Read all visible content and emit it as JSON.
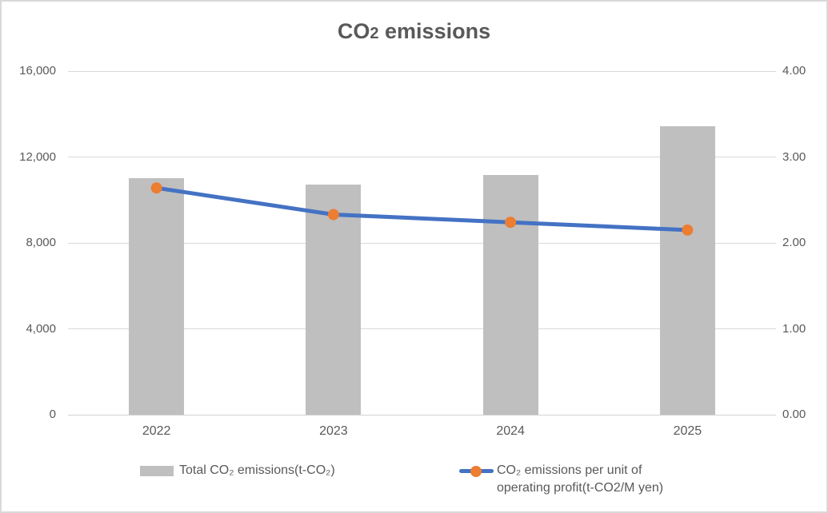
{
  "chart_data": {
    "type": "combo bar+line",
    "title": "CO2 emissions",
    "title_parts": {
      "prefix": "CO",
      "small_two": "2",
      "suffix": " emissions"
    },
    "categories": [
      "2022",
      "2023",
      "2024",
      "2025"
    ],
    "series": [
      {
        "name": "Total CO₂ emissions(t-CO₂)",
        "type": "bar",
        "axis": "left",
        "values": [
          11000,
          10700,
          11150,
          13450
        ],
        "color": "#BFBFBF"
      },
      {
        "name": "CO₂ emissions per unit of\noperating profit(t-CO2/M yen)",
        "type": "line",
        "axis": "right",
        "values": [
          2.64,
          2.33,
          2.24,
          2.15
        ],
        "line_color": "#4472C4",
        "marker_color": "#ED7D31"
      }
    ],
    "left_axis": {
      "min": 0,
      "max": 16000,
      "ticks": [
        "0",
        "4,000",
        "8,000",
        "12,000",
        "16,000"
      ]
    },
    "right_axis": {
      "min": 0,
      "max": 4,
      "ticks": [
        "0.00",
        "1.00",
        "2.00",
        "3.00",
        "4.00"
      ]
    },
    "grid": true,
    "legend_position": "bottom",
    "text_color": "#595959",
    "gridline_color": "#D9D9D9"
  }
}
